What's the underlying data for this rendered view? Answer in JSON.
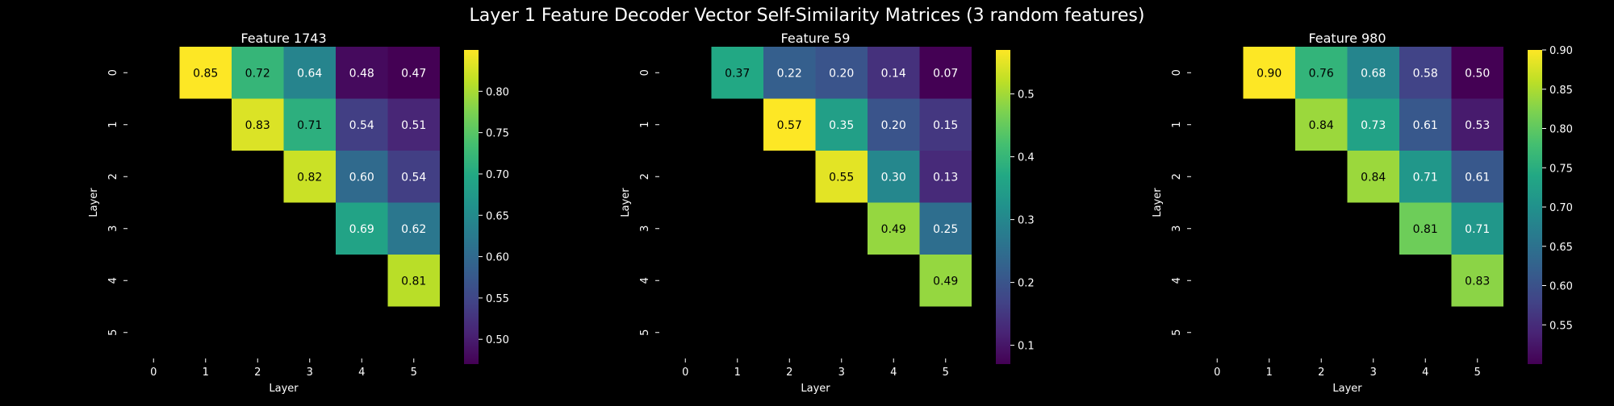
{
  "figure": {
    "suptitle": "Layer 1 Feature Decoder Vector Self-Similarity Matrices (3 random features)",
    "background": "#000000",
    "text_color": "#ffffff",
    "colormap": "viridis"
  },
  "chart_data": [
    {
      "type": "heatmap",
      "title": "Feature 1743",
      "xlabel": "Layer",
      "ylabel": "Layer",
      "x_ticks": [
        "0",
        "1",
        "2",
        "3",
        "4",
        "5"
      ],
      "y_ticks": [
        "0",
        "1",
        "2",
        "3",
        "4",
        "5"
      ],
      "mask": "upper-triangle (j > i) shown only",
      "matrix": [
        [
          null,
          0.85,
          0.72,
          0.64,
          0.48,
          0.47
        ],
        [
          null,
          null,
          0.83,
          0.71,
          0.54,
          0.51
        ],
        [
          null,
          null,
          null,
          0.82,
          0.6,
          0.54
        ],
        [
          null,
          null,
          null,
          null,
          0.69,
          0.62
        ],
        [
          null,
          null,
          null,
          null,
          null,
          0.81
        ],
        [
          null,
          null,
          null,
          null,
          null,
          null
        ]
      ],
      "vmin": 0.47,
      "vmax": 0.85,
      "colorbar_ticks": [
        "0.50",
        "0.55",
        "0.60",
        "0.65",
        "0.70",
        "0.75",
        "0.80"
      ],
      "colorbar_tick_values": [
        0.5,
        0.55,
        0.6,
        0.65,
        0.7,
        0.75,
        0.8
      ]
    },
    {
      "type": "heatmap",
      "title": "Feature 59",
      "xlabel": "Layer",
      "ylabel": "Layer",
      "x_ticks": [
        "0",
        "1",
        "2",
        "3",
        "4",
        "5"
      ],
      "y_ticks": [
        "0",
        "1",
        "2",
        "3",
        "4",
        "5"
      ],
      "mask": "upper-triangle (j > i) shown only",
      "matrix": [
        [
          null,
          0.37,
          0.22,
          0.2,
          0.14,
          0.07
        ],
        [
          null,
          null,
          0.57,
          0.35,
          0.2,
          0.15
        ],
        [
          null,
          null,
          null,
          0.55,
          0.3,
          0.13
        ],
        [
          null,
          null,
          null,
          null,
          0.49,
          0.25
        ],
        [
          null,
          null,
          null,
          null,
          null,
          0.49
        ],
        [
          null,
          null,
          null,
          null,
          null,
          null
        ]
      ],
      "vmin": 0.07,
      "vmax": 0.57,
      "colorbar_ticks": [
        "0.1",
        "0.2",
        "0.3",
        "0.4",
        "0.5"
      ],
      "colorbar_tick_values": [
        0.1,
        0.2,
        0.3,
        0.4,
        0.5
      ]
    },
    {
      "type": "heatmap",
      "title": "Feature 980",
      "xlabel": "Layer",
      "ylabel": "Layer",
      "x_ticks": [
        "0",
        "1",
        "2",
        "3",
        "4",
        "5"
      ],
      "y_ticks": [
        "0",
        "1",
        "2",
        "3",
        "4",
        "5"
      ],
      "mask": "upper-triangle (j > i) shown only",
      "matrix": [
        [
          null,
          0.9,
          0.76,
          0.68,
          0.58,
          0.5
        ],
        [
          null,
          null,
          0.84,
          0.73,
          0.61,
          0.53
        ],
        [
          null,
          null,
          null,
          0.84,
          0.71,
          0.61
        ],
        [
          null,
          null,
          null,
          null,
          0.81,
          0.71
        ],
        [
          null,
          null,
          null,
          null,
          null,
          0.83
        ],
        [
          null,
          null,
          null,
          null,
          null,
          null
        ]
      ],
      "vmin": 0.5,
      "vmax": 0.9,
      "colorbar_ticks": [
        "0.55",
        "0.60",
        "0.65",
        "0.70",
        "0.75",
        "0.80",
        "0.85",
        "0.90"
      ],
      "colorbar_tick_values": [
        0.55,
        0.6,
        0.65,
        0.7,
        0.75,
        0.8,
        0.85,
        0.9
      ]
    }
  ]
}
